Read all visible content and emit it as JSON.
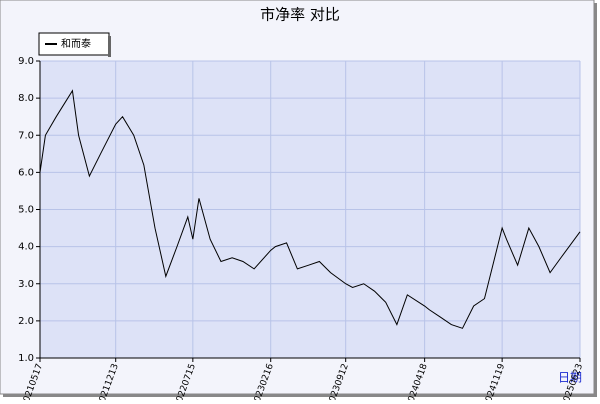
{
  "chart_data": {
    "type": "line",
    "title": "市净率  对比",
    "x_label": "日期",
    "x": [
      "20210517",
      "20210601",
      "20210701",
      "20210815",
      "20210901",
      "20211001",
      "20211101",
      "20211213",
      "20220101",
      "20220201",
      "20220301",
      "20220401",
      "20220501",
      "20220601",
      "20220701",
      "20220715",
      "20220801",
      "20220901",
      "20221001",
      "20221101",
      "20221201",
      "20230101",
      "20230216",
      "20230301",
      "20230401",
      "20230501",
      "20230601",
      "20230701",
      "20230801",
      "20230912",
      "20231001",
      "20231101",
      "20231201",
      "20240101",
      "20240201",
      "20240301",
      "20240418",
      "20240501",
      "20240601",
      "20240701",
      "20240801",
      "20240901",
      "20241001",
      "20241119",
      "20241201",
      "20250101",
      "20250201",
      "20250301",
      "20250401",
      "20250501",
      "20250623"
    ],
    "series": [
      {
        "name": "和而泰",
        "color": "#000000",
        "values": [
          6.0,
          7.0,
          7.5,
          8.2,
          7.0,
          5.9,
          6.5,
          7.3,
          7.5,
          7.0,
          6.2,
          4.5,
          3.2,
          4.0,
          4.8,
          4.2,
          5.3,
          4.2,
          3.6,
          3.7,
          3.6,
          3.4,
          3.9,
          4.0,
          4.1,
          3.4,
          3.5,
          3.6,
          3.3,
          3.0,
          2.9,
          3.0,
          2.8,
          2.5,
          1.9,
          2.7,
          2.4,
          2.3,
          2.1,
          1.9,
          1.8,
          2.4,
          2.6,
          4.5,
          4.2,
          3.5,
          4.5,
          4.0,
          3.3,
          3.7,
          4.4
        ]
      }
    ],
    "xlim": [
      "20210517",
      "20250623"
    ],
    "xticks": [
      "20210517",
      "20211213",
      "20220715",
      "20230216",
      "20230912",
      "20240418",
      "20241119",
      "20250623"
    ],
    "ylim": [
      1,
      9
    ],
    "yticks": [
      {
        "value": 1,
        "label": "1.0"
      },
      {
        "value": 2,
        "label": "2.0"
      },
      {
        "value": 3,
        "label": "3.0"
      },
      {
        "value": 4,
        "label": "4.0"
      },
      {
        "value": 5,
        "label": "5.0"
      },
      {
        "value": 6,
        "label": "6.0"
      },
      {
        "value": 7,
        "label": "7.0"
      },
      {
        "value": 8,
        "label": "8.0"
      },
      {
        "value": 9,
        "label": "9.0"
      }
    ],
    "grid": true,
    "legend": "top-left"
  }
}
